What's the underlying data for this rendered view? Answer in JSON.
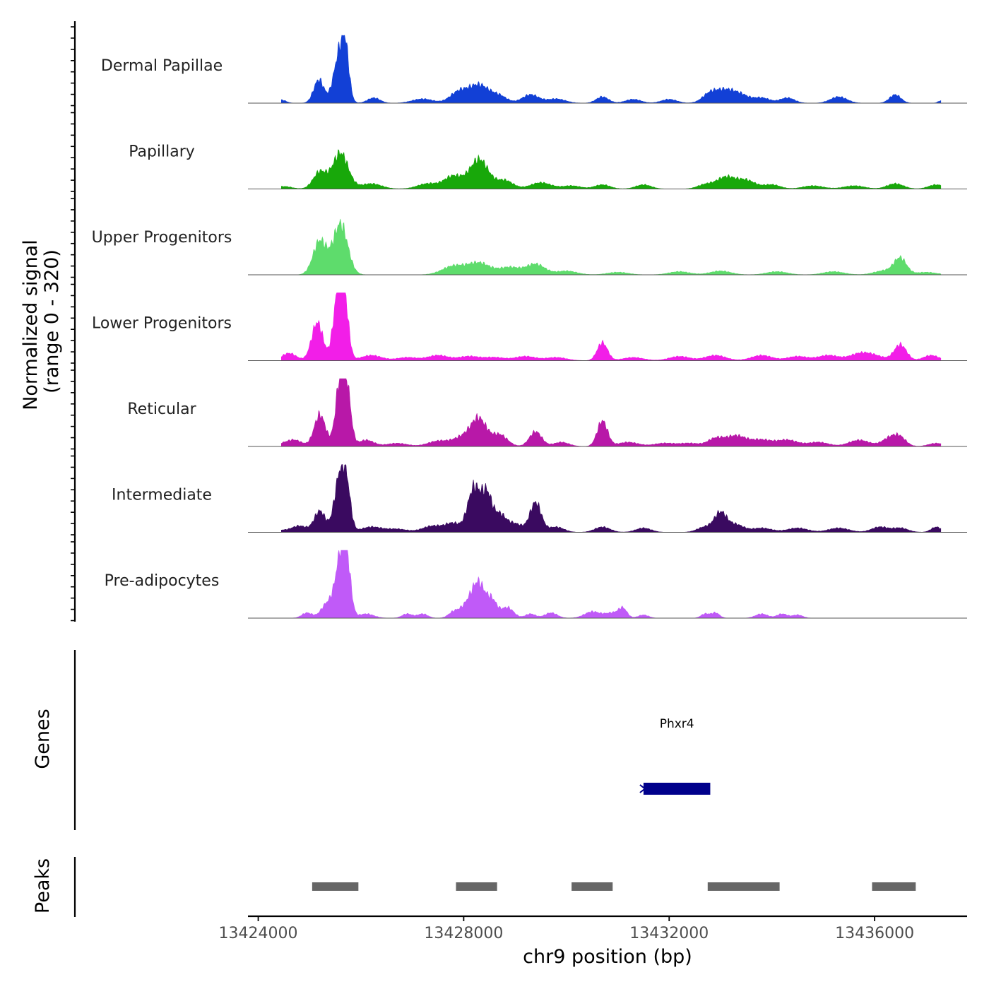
{
  "chart_data": {
    "type": "area",
    "title": "",
    "ylabel": "Normalized signal",
    "ylabel_range": "(range 0 - 320)",
    "ylim": [
      0,
      320
    ],
    "xlabel": "chr9 position (bp)",
    "xlim": [
      13423800,
      13437800
    ],
    "x_ticks": [
      13424000,
      13428000,
      13432000,
      13436000
    ],
    "x_tick_labels": [
      "13424000",
      "13428000",
      "13432000",
      "13436000"
    ],
    "genes_label": "Genes",
    "peaks_label": "Peaks",
    "tracks": [
      {
        "name": "Dermal Papillae",
        "color": "#1240D6",
        "peaks": [
          [
            13424450,
            15,
            90
          ],
          [
            13425180,
            110,
            100
          ],
          [
            13425580,
            230,
            110
          ],
          [
            13425700,
            180,
            70
          ],
          [
            13426250,
            25,
            120
          ],
          [
            13427200,
            20,
            200
          ],
          [
            13427900,
            50,
            170
          ],
          [
            13428300,
            85,
            200
          ],
          [
            13428700,
            30,
            150
          ],
          [
            13429300,
            40,
            160
          ],
          [
            13429800,
            20,
            180
          ],
          [
            13430700,
            30,
            120
          ],
          [
            13431300,
            18,
            150
          ],
          [
            13432000,
            18,
            150
          ],
          [
            13432800,
            45,
            150
          ],
          [
            13433100,
            55,
            170
          ],
          [
            13433400,
            35,
            160
          ],
          [
            13433800,
            25,
            160
          ],
          [
            13434300,
            25,
            140
          ],
          [
            13435300,
            30,
            160
          ],
          [
            13436400,
            40,
            110
          ],
          [
            13437300,
            12,
            60
          ]
        ]
      },
      {
        "name": "Papillary",
        "color": "#18A80A",
        "peaks": [
          [
            13424500,
            12,
            150
          ],
          [
            13425200,
            80,
            130
          ],
          [
            13425600,
            170,
            150
          ],
          [
            13426200,
            25,
            200
          ],
          [
            13427300,
            25,
            200
          ],
          [
            13427800,
            60,
            180
          ],
          [
            13428300,
            140,
            180
          ],
          [
            13428800,
            40,
            160
          ],
          [
            13429500,
            30,
            200
          ],
          [
            13430100,
            15,
            180
          ],
          [
            13430700,
            20,
            150
          ],
          [
            13431500,
            20,
            150
          ],
          [
            13432700,
            20,
            150
          ],
          [
            13433100,
            55,
            180
          ],
          [
            13433500,
            40,
            180
          ],
          [
            13434000,
            20,
            160
          ],
          [
            13434800,
            15,
            200
          ],
          [
            13435600,
            15,
            200
          ],
          [
            13436400,
            25,
            160
          ],
          [
            13437200,
            20,
            150
          ]
        ]
      },
      {
        "name": "Upper Progenitors",
        "color": "#5EDC6C",
        "peaks": [
          [
            13425200,
            160,
            130
          ],
          [
            13425600,
            240,
            140
          ],
          [
            13427800,
            40,
            220
          ],
          [
            13428300,
            55,
            220
          ],
          [
            13428900,
            35,
            200
          ],
          [
            13429400,
            50,
            180
          ],
          [
            13430000,
            18,
            200
          ],
          [
            13431000,
            12,
            200
          ],
          [
            13432200,
            15,
            200
          ],
          [
            13433000,
            18,
            200
          ],
          [
            13434100,
            15,
            200
          ],
          [
            13435200,
            15,
            200
          ],
          [
            13436200,
            20,
            200
          ],
          [
            13436500,
            75,
            120
          ],
          [
            13437000,
            12,
            200
          ]
        ]
      },
      {
        "name": "Lower Progenitors",
        "color": "#F21EE8",
        "peaks": [
          [
            13424600,
            35,
            140
          ],
          [
            13425150,
            180,
            110
          ],
          [
            13425550,
            300,
            90
          ],
          [
            13425680,
            250,
            80
          ],
          [
            13426200,
            25,
            200
          ],
          [
            13426900,
            15,
            200
          ],
          [
            13427500,
            25,
            200
          ],
          [
            13428100,
            20,
            200
          ],
          [
            13428600,
            15,
            200
          ],
          [
            13429200,
            20,
            200
          ],
          [
            13429800,
            15,
            200
          ],
          [
            13430700,
            85,
            100
          ],
          [
            13431300,
            15,
            200
          ],
          [
            13432200,
            20,
            200
          ],
          [
            13432900,
            25,
            200
          ],
          [
            13433800,
            25,
            200
          ],
          [
            13434500,
            20,
            200
          ],
          [
            13435100,
            25,
            200
          ],
          [
            13435700,
            30,
            200
          ],
          [
            13436000,
            20,
            200
          ],
          [
            13436500,
            75,
            120
          ],
          [
            13437100,
            25,
            150
          ]
        ]
      },
      {
        "name": "Reticular",
        "color": "#B818A8",
        "peaks": [
          [
            13424400,
            10,
            150
          ],
          [
            13424700,
            30,
            150
          ],
          [
            13425200,
            150,
            110
          ],
          [
            13425600,
            310,
            90
          ],
          [
            13425730,
            220,
            80
          ],
          [
            13426100,
            30,
            150
          ],
          [
            13426700,
            15,
            200
          ],
          [
            13427500,
            25,
            200
          ],
          [
            13428000,
            45,
            200
          ],
          [
            13428300,
            120,
            150
          ],
          [
            13428700,
            55,
            150
          ],
          [
            13429400,
            70,
            120
          ],
          [
            13429900,
            20,
            150
          ],
          [
            13430700,
            120,
            100
          ],
          [
            13431200,
            20,
            200
          ],
          [
            13431900,
            15,
            200
          ],
          [
            13432400,
            15,
            200
          ],
          [
            13432900,
            35,
            150
          ],
          [
            13433300,
            50,
            200
          ],
          [
            13433800,
            30,
            200
          ],
          [
            13434300,
            30,
            200
          ],
          [
            13434900,
            20,
            200
          ],
          [
            13435700,
            30,
            200
          ],
          [
            13436300,
            40,
            150
          ],
          [
            13436500,
            35,
            120
          ],
          [
            13437200,
            15,
            150
          ]
        ]
      },
      {
        "name": "Intermediate",
        "color": "#3A0A60",
        "peaks": [
          [
            13424400,
            10,
            150
          ],
          [
            13424800,
            30,
            150
          ],
          [
            13425200,
            100,
            110
          ],
          [
            13425580,
            250,
            100
          ],
          [
            13425720,
            190,
            80
          ],
          [
            13426200,
            25,
            200
          ],
          [
            13426700,
            15,
            200
          ],
          [
            13427400,
            30,
            200
          ],
          [
            13427800,
            40,
            150
          ],
          [
            13428200,
            210,
            120
          ],
          [
            13428450,
            170,
            100
          ],
          [
            13428700,
            80,
            120
          ],
          [
            13429000,
            40,
            150
          ],
          [
            13429400,
            140,
            110
          ],
          [
            13429800,
            25,
            150
          ],
          [
            13430700,
            25,
            150
          ],
          [
            13431500,
            20,
            150
          ],
          [
            13432700,
            25,
            150
          ],
          [
            13433000,
            90,
            120
          ],
          [
            13433300,
            35,
            150
          ],
          [
            13433800,
            20,
            200
          ],
          [
            13434500,
            20,
            200
          ],
          [
            13435300,
            20,
            200
          ],
          [
            13436100,
            25,
            160
          ],
          [
            13436500,
            20,
            150
          ],
          [
            13437200,
            25,
            100
          ]
        ]
      },
      {
        "name": "Pre-adipocytes",
        "color": "#C05AF8",
        "peaks": [
          [
            13424950,
            25,
            100
          ],
          [
            13425350,
            70,
            120
          ],
          [
            13425600,
            260,
            100
          ],
          [
            13425720,
            230,
            80
          ],
          [
            13426100,
            20,
            150
          ],
          [
            13426900,
            20,
            100
          ],
          [
            13427200,
            20,
            100
          ],
          [
            13427800,
            25,
            100
          ],
          [
            13428100,
            70,
            150
          ],
          [
            13428300,
            140,
            120
          ],
          [
            13428550,
            80,
            100
          ],
          [
            13428850,
            50,
            120
          ],
          [
            13429300,
            20,
            100
          ],
          [
            13429700,
            25,
            120
          ],
          [
            13430500,
            30,
            150
          ],
          [
            13430900,
            25,
            150
          ],
          [
            13431100,
            40,
            80
          ],
          [
            13431500,
            15,
            100
          ],
          [
            13432700,
            20,
            80
          ],
          [
            13432900,
            25,
            80
          ],
          [
            13433800,
            20,
            120
          ],
          [
            13434200,
            20,
            100
          ],
          [
            13434500,
            15,
            100
          ]
        ]
      }
    ],
    "genes": [
      {
        "name": "Phxr4",
        "start": 13431500,
        "end": 13432800,
        "color": "#00008B"
      }
    ],
    "peaks_regions": [
      {
        "start": 13425050,
        "end": 13425950
      },
      {
        "start": 13427850,
        "end": 13428650
      },
      {
        "start": 13430100,
        "end": 13430900
      },
      {
        "start": 13432750,
        "end": 13434150
      },
      {
        "start": 13435950,
        "end": 13436800
      }
    ],
    "peak_color": "#666666"
  }
}
